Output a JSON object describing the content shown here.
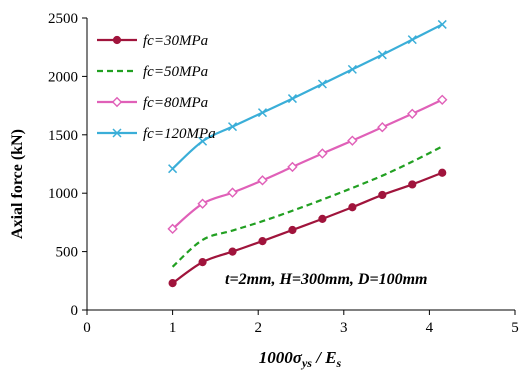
{
  "chart_data": {
    "type": "line",
    "title": "",
    "xlabel_prefix": "1000",
    "xlabel_sigma": "σ",
    "xlabel_sigma_sub": "ys",
    "xlabel_slash": " / ",
    "xlabel_E": "E",
    "xlabel_E_sub": "s",
    "ylabel": "Axial force (kN)",
    "xlim": [
      0,
      5
    ],
    "ylim": [
      0,
      2500
    ],
    "xticks": [
      "0",
      "1",
      "2",
      "3",
      "4",
      "5"
    ],
    "yticks": [
      "0",
      "500",
      "1000",
      "1500",
      "2000",
      "2500"
    ],
    "grid": false,
    "legend_position": "top-left",
    "annotation": "t=2mm, H=300mm, D=100mm",
    "x": [
      1.0,
      1.35,
      1.7,
      2.05,
      2.4,
      2.75,
      3.1,
      3.45,
      3.8,
      4.15
    ],
    "series": [
      {
        "name": "fc=30MPa",
        "color": "#a0143c",
        "style": "solid",
        "marker": "circle",
        "values": [
          230,
          410,
          500,
          590,
          685,
          780,
          880,
          985,
          1075,
          1175
        ]
      },
      {
        "name": "fc=50MPa",
        "color": "#22a022",
        "style": "dashed",
        "marker": "none",
        "values": [
          370,
          600,
          680,
          760,
          850,
          945,
          1045,
          1150,
          1270,
          1400
        ]
      },
      {
        "name": "fc=80MPa",
        "color": "#e060b8",
        "style": "solid",
        "marker": "diamond",
        "values": [
          695,
          910,
          1005,
          1110,
          1225,
          1340,
          1450,
          1565,
          1680,
          1800
        ]
      },
      {
        "name": "fc=120MPa",
        "color": "#3aaed8",
        "style": "solid",
        "marker": "x",
        "values": [
          1210,
          1445,
          1570,
          1690,
          1810,
          1935,
          2060,
          2185,
          2315,
          2445
        ]
      }
    ]
  }
}
